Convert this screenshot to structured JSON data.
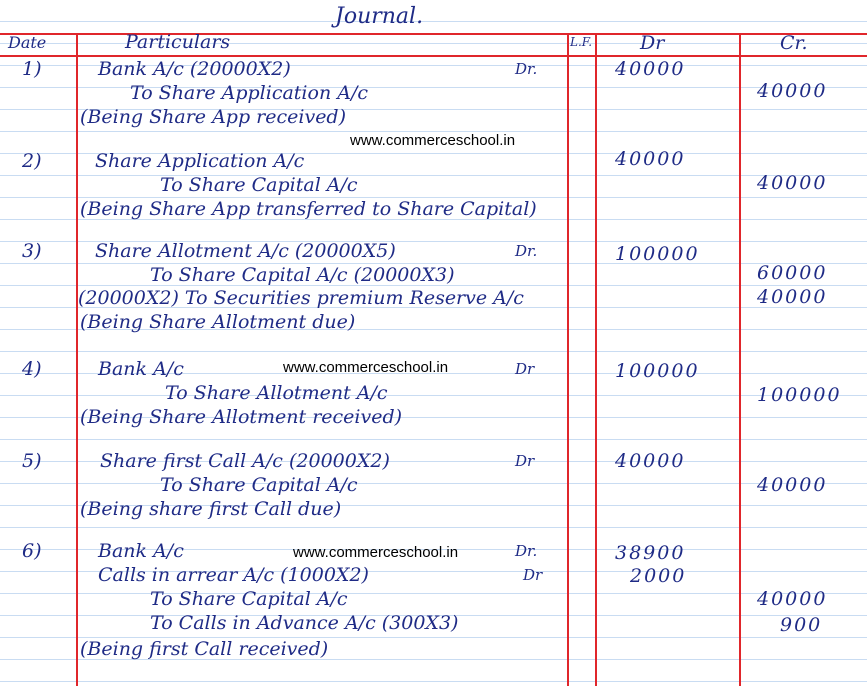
{
  "title": "Journal.",
  "headers": {
    "date": "Date",
    "particulars": "Particulars",
    "lf": "L.F.",
    "dr": "Dr",
    "cr": "Cr."
  },
  "watermark": "www.commerceschool.in",
  "entries": [
    {
      "no": "1)",
      "lines": [
        "Bank A/c (20000X2)",
        "To Share Application A/c",
        "(Being Share App received)"
      ],
      "dr_mark": "Dr.",
      "dr": [
        "40000"
      ],
      "cr": [
        "40000"
      ]
    },
    {
      "no": "2)",
      "lines": [
        "Share Application A/c",
        "To Share Capital A/c",
        "(Being Share App transferred to Share Capital)"
      ],
      "dr_mark": "",
      "dr": [
        "40000"
      ],
      "cr": [
        "40000"
      ]
    },
    {
      "no": "3)",
      "lines": [
        "Share Allotment A/c (20000X5)",
        "To Share Capital A/c (20000X3)",
        "(20000X2) To Securities premium Reserve A/c",
        "(Being Share Allotment due)"
      ],
      "dr_mark": "Dr.",
      "dr": [
        "100000"
      ],
      "cr": [
        "60000",
        "40000"
      ]
    },
    {
      "no": "4)",
      "lines": [
        "Bank A/c",
        "To Share Allotment A/c",
        "(Being Share Allotment received)"
      ],
      "dr_mark": "Dr",
      "dr": [
        "100000"
      ],
      "cr": [
        "100000"
      ]
    },
    {
      "no": "5)",
      "lines": [
        "Share first Call A/c (20000X2)",
        "To Share Capital A/c",
        "(Being share first Call due)"
      ],
      "dr_mark": "Dr",
      "dr": [
        "40000"
      ],
      "cr": [
        "40000"
      ]
    },
    {
      "no": "6)",
      "lines": [
        "Bank A/c",
        "Calls in arrear A/c (1000X2)",
        "To Share Capital A/c",
        "To Calls in Advance A/c (300X3)",
        "(Being first Call received)"
      ],
      "dr_mark": "Dr.",
      "dr_mark2": "Dr",
      "dr": [
        "38900",
        "2000"
      ],
      "cr": [
        "40000",
        "900"
      ]
    }
  ]
}
